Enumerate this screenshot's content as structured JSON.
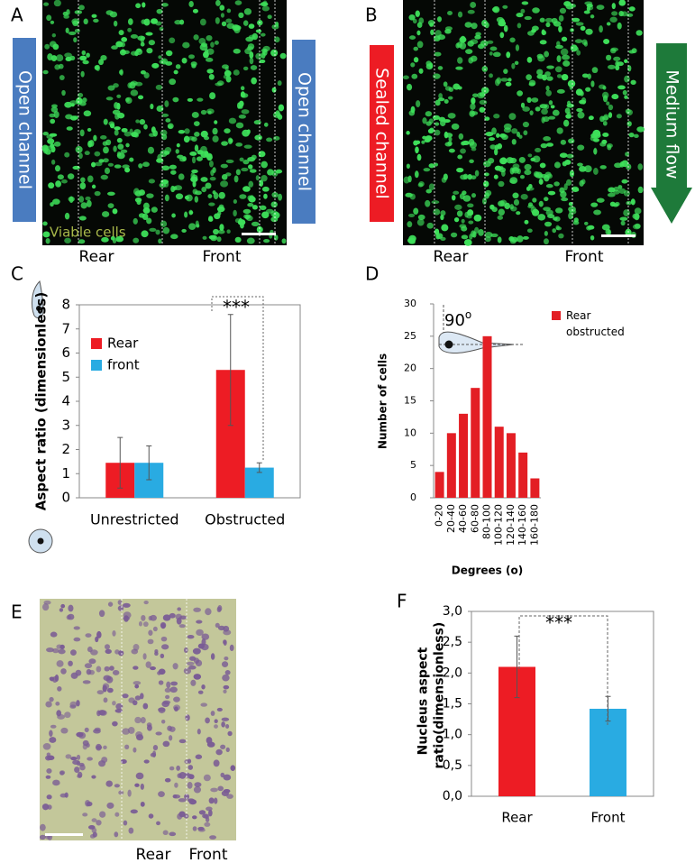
{
  "panels": {
    "a": {
      "label": "A",
      "left_channel": "Open channel",
      "right_channel": "Open channel",
      "caption": "Viable cells",
      "rear": "Rear",
      "front": "Front"
    },
    "b": {
      "label": "B",
      "channel": "Sealed channel",
      "flow": "Medium flow",
      "rear": "Rear",
      "front": "Front"
    },
    "e": {
      "label": "E",
      "rear": "Rear",
      "front": "Front"
    }
  },
  "chart_data": [
    {
      "type": "bar",
      "panel": "C",
      "ylabel": "Aspect ratio (dimensionless)",
      "annotation": "***",
      "categories": [
        "Unrestricted",
        "Obstructed"
      ],
      "series": [
        {
          "name": "Rear",
          "color": "#ed1c24",
          "values": [
            1.45,
            5.3
          ],
          "errors": [
            1.05,
            2.3
          ]
        },
        {
          "name": "front",
          "color": "#29abe2",
          "values": [
            1.45,
            1.25
          ],
          "errors": [
            0.7,
            0.2
          ]
        }
      ],
      "ylim": [
        0,
        8
      ],
      "yticks": [
        0,
        1,
        2,
        3,
        4,
        5,
        6,
        7,
        8
      ],
      "legend": "upper left"
    },
    {
      "type": "bar",
      "panel": "D",
      "xlabel": "Degrees (o)",
      "ylabel": "Number of cells",
      "annotation": "90",
      "annotation_sup": "o",
      "categories": [
        "0-20",
        "20-40",
        "40-60",
        "60-80",
        "80-100",
        "100-120",
        "120-140",
        "140-160",
        "160-180"
      ],
      "series": [
        {
          "name": "Rear obstructed",
          "color": "#e31e24",
          "values": [
            4,
            10,
            13,
            17,
            25,
            11,
            10,
            7,
            3
          ]
        }
      ],
      "ylim": [
        0,
        30
      ],
      "yticks": [
        0,
        5,
        10,
        15,
        20,
        25,
        30
      ],
      "legend": "upper right"
    },
    {
      "type": "bar",
      "panel": "F",
      "ylabel": "Nucleus aspect ratio(dimensionless)",
      "annotation": "***",
      "categories": [
        "Rear",
        "Front"
      ],
      "values": [
        2.1,
        1.42
      ],
      "errors": [
        0.5,
        0.2
      ],
      "colors": [
        "#ed1c24",
        "#29abe2"
      ],
      "ylim": [
        0,
        3
      ],
      "yticks": [
        {
          "value": 0,
          "label": "0,0"
        },
        {
          "value": 0.5,
          "label": "0,5"
        },
        {
          "value": 1,
          "label": "1,0"
        },
        {
          "value": 1.5,
          "label": "1,5"
        },
        {
          "value": 2,
          "label": "2,0"
        },
        {
          "value": 2.5,
          "label": "2,5"
        },
        {
          "value": 3,
          "label": "3,0"
        }
      ]
    }
  ]
}
